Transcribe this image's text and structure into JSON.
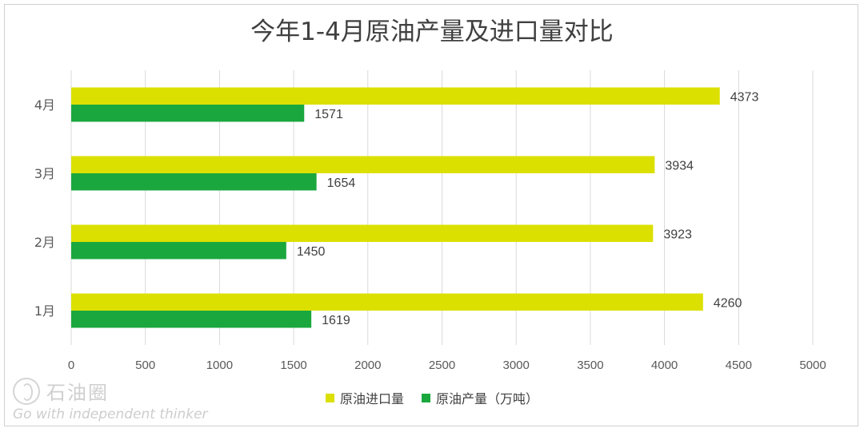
{
  "chart_data": {
    "type": "bar",
    "orientation": "horizontal",
    "title": "今年1-4月原油产量及进口量对比",
    "categories": [
      "1月",
      "2月",
      "3月",
      "4月"
    ],
    "series": [
      {
        "name": "原油进口量",
        "color": "#dce000",
        "values": [
          4260,
          3923,
          3934,
          4373
        ]
      },
      {
        "name": "原油产量（万吨）",
        "color": "#1aa83e",
        "values": [
          1619,
          1450,
          1654,
          1571
        ]
      }
    ],
    "xlim": [
      0,
      5000
    ],
    "xticks": [
      0,
      500,
      1000,
      1500,
      2000,
      2500,
      3000,
      3500,
      4000,
      4500,
      5000
    ],
    "grid": true,
    "legend_position": "bottom",
    "data_labels": true
  },
  "legend": {
    "item0": "原油进口量",
    "item1": "原油产量（万吨）"
  },
  "watermark": {
    "name": "石油圈",
    "tagline": "Go with independent thinker",
    "logo_icon": "oil-drop-logo-icon"
  }
}
